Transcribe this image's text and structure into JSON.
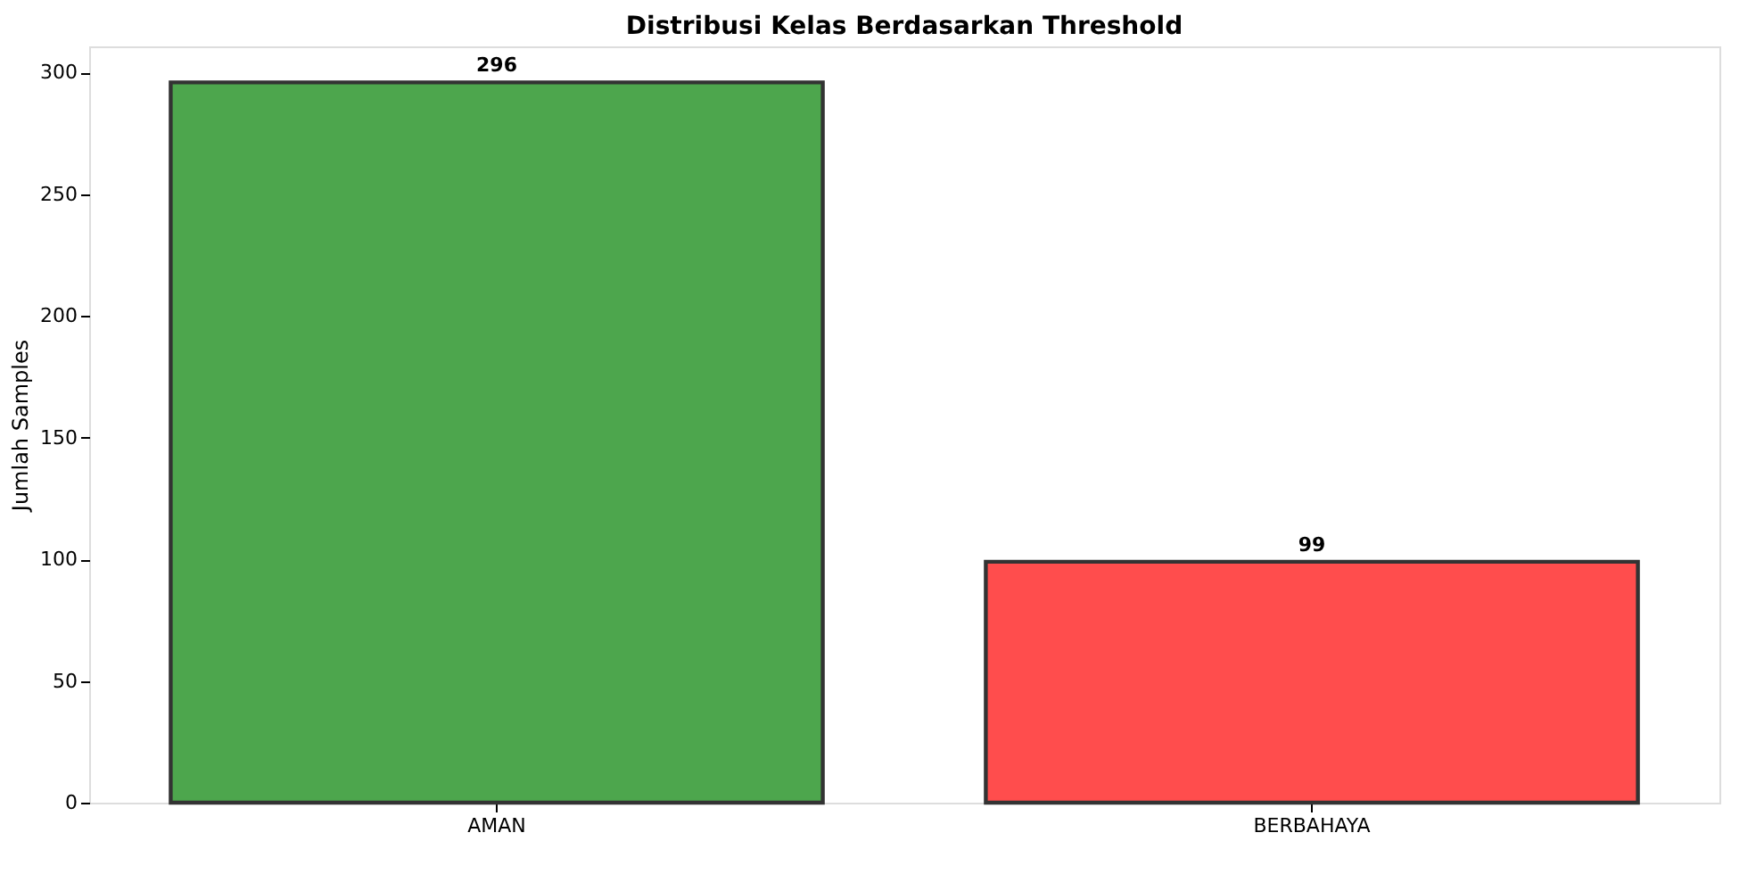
{
  "chart_data": {
    "type": "bar",
    "title": "Distribusi Kelas Berdasarkan Threshold",
    "ylabel": "Jumlah Samples",
    "categories": [
      "AMAN",
      "BERBAHAYA"
    ],
    "values": [
      296,
      99
    ],
    "colors": [
      "#4da64d",
      "#ff4d4d"
    ],
    "ylim": [
      0,
      310.8
    ],
    "yticks": [
      0,
      50,
      100,
      150,
      200,
      250,
      300
    ],
    "grid": false,
    "legend": false,
    "data_labels": true
  }
}
